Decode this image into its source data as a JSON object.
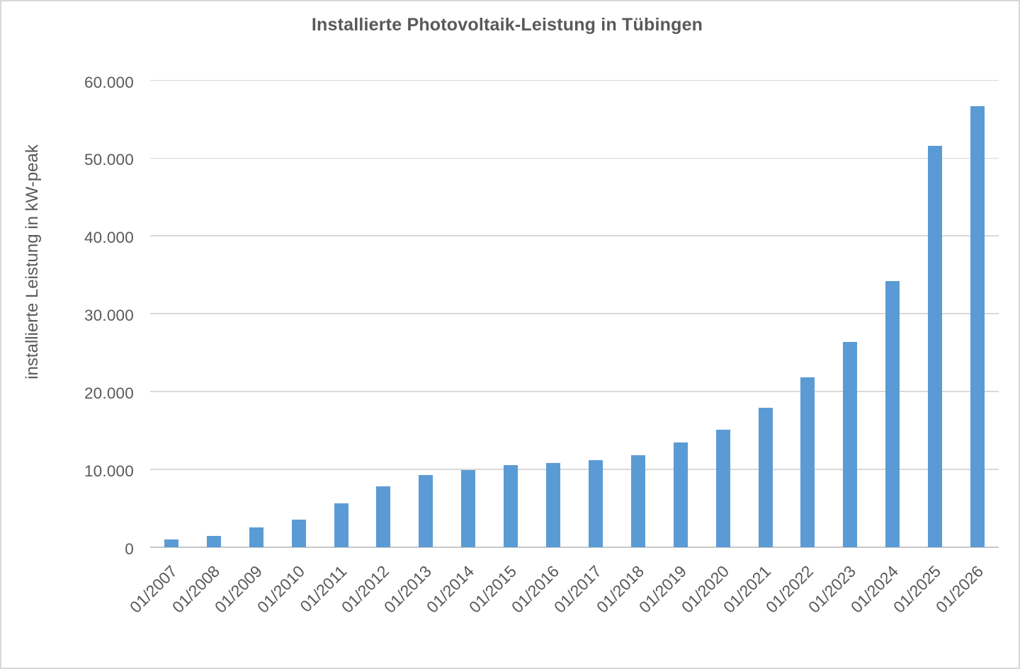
{
  "page": {
    "background": "#ffffff",
    "border_color": "#d8d8d8"
  },
  "chart_data": {
    "type": "bar",
    "title": "Installierte Photovoltaik-Leistung in Tübingen",
    "ylabel": "installierte Leistung in kW-peak",
    "xlabel": "",
    "categories": [
      "01/2007",
      "01/2008",
      "01/2009",
      "01/2010",
      "01/2011",
      "01/2012",
      "01/2013",
      "01/2014",
      "01/2015",
      "01/2016",
      "01/2017",
      "01/2018",
      "01/2019",
      "01/2020",
      "01/2021",
      "01/2022",
      "01/2023",
      "01/2024",
      "01/2025",
      "01/2026"
    ],
    "values": [
      950,
      1470,
      2520,
      3570,
      5600,
      7850,
      9250,
      9900,
      10550,
      10800,
      11200,
      11780,
      13470,
      15100,
      17900,
      21800,
      26400,
      34150,
      51550,
      56650
    ],
    "ylim": [
      0,
      60000
    ],
    "ytick_interval": 10000,
    "ytick_labels": [
      "0",
      "10.000",
      "20.000",
      "30.000",
      "40.000",
      "50.000",
      "60.000"
    ],
    "grid": true,
    "legend": false,
    "x_tick_rotation_deg": -45,
    "bar_color": "#5b9bd5",
    "title_color": "#595959",
    "axis_text_color": "#595959",
    "gridline_color": "#d9d9d9",
    "axis_line_color": "#c8c8c8"
  }
}
